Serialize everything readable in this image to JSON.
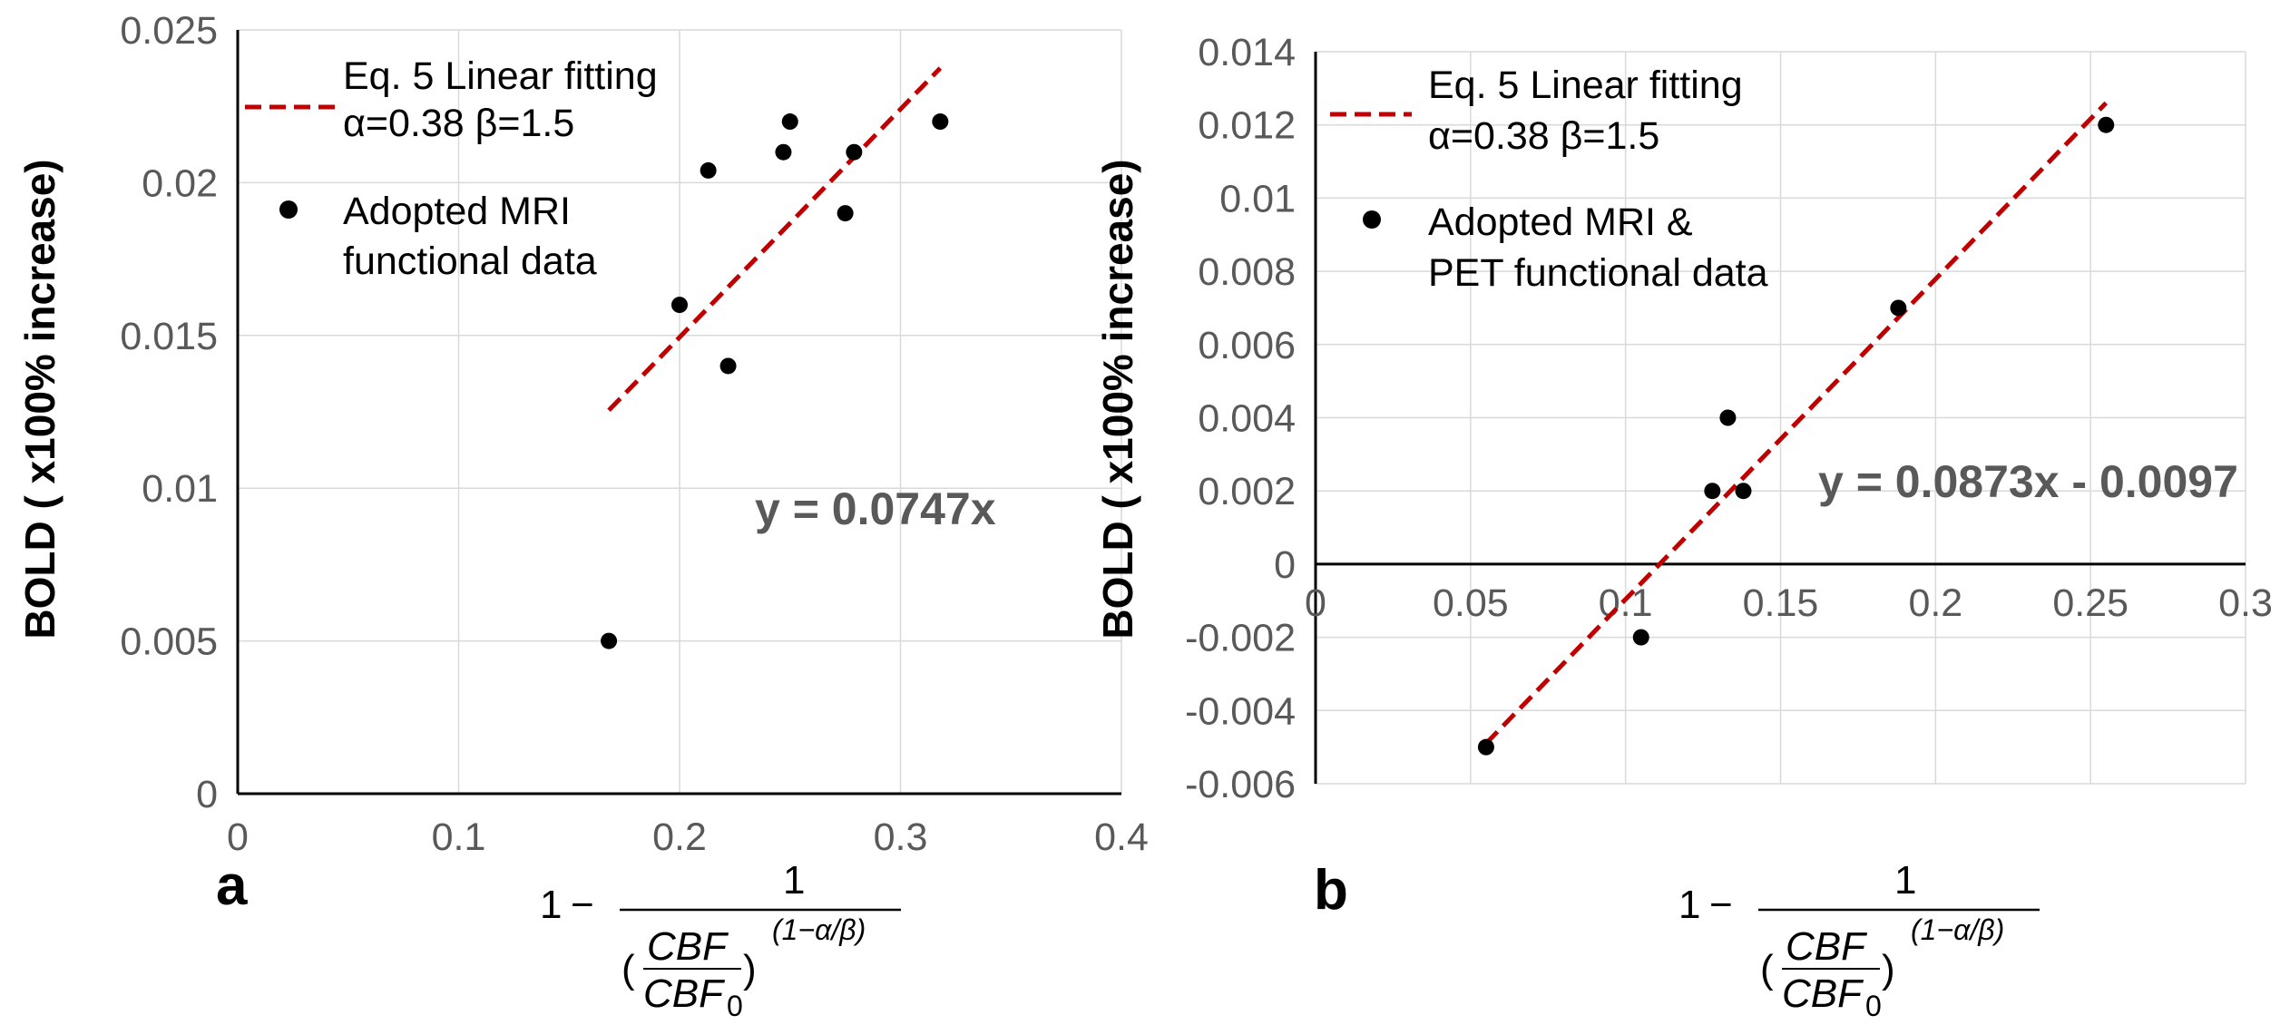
{
  "chart_data": [
    {
      "type": "scatter",
      "panel_label": "a",
      "title": "",
      "ylabel": "BOLD ( x100% increase)",
      "xlabel_formula": "1 − 1 / (CBF/CBF0)^(1−α/β)",
      "xlim": [
        0,
        0.4
      ],
      "ylim": [
        0,
        0.025
      ],
      "x_ticks": [
        0,
        0.1,
        0.2,
        0.3,
        0.4
      ],
      "x_tick_labels": [
        "0",
        "0.1",
        "0.2",
        "0.3",
        "0.4"
      ],
      "y_ticks": [
        0,
        0.005,
        0.01,
        0.015,
        0.02,
        0.025
      ],
      "y_tick_labels": [
        "0",
        "0.005",
        "0.01",
        "0.015",
        "0.02",
        "0.025"
      ],
      "grid": true,
      "legend_position": "top-left",
      "series": [
        {
          "name": "Adopted MRI functional data",
          "kind": "points",
          "color": "#000000",
          "points": [
            [
              0.168,
              0.005
            ],
            [
              0.2,
              0.016
            ],
            [
              0.213,
              0.0204
            ],
            [
              0.222,
              0.014
            ],
            [
              0.247,
              0.021
            ],
            [
              0.25,
              0.022
            ],
            [
              0.275,
              0.019
            ],
            [
              0.279,
              0.021
            ],
            [
              0.318,
              0.022
            ]
          ]
        },
        {
          "name": "Eq. 5 Linear fitting\nα=0.38 β=1.5",
          "kind": "line",
          "style": "dashed",
          "color": "#c00000",
          "x": [
            0.168,
            0.318
          ],
          "y": [
            0.01255,
            0.02375
          ]
        }
      ],
      "annotation": "y = 0.0747x"
    },
    {
      "type": "scatter",
      "panel_label": "b",
      "title": "",
      "ylabel": "BOLD ( x100% increase)",
      "xlabel_formula": "1 − 1 / (CBF/CBF0)^(1−α/β)",
      "xlim": [
        0,
        0.3
      ],
      "ylim": [
        -0.006,
        0.014
      ],
      "x_ticks": [
        0,
        0.05,
        0.1,
        0.15,
        0.2,
        0.25,
        0.3
      ],
      "x_tick_labels": [
        "0",
        "0.05",
        "0.1",
        "0.15",
        "0.2",
        "0.25",
        "0.3"
      ],
      "y_ticks": [
        -0.006,
        -0.004,
        -0.002,
        0,
        0.002,
        0.004,
        0.006,
        0.008,
        0.01,
        0.012,
        0.014
      ],
      "y_tick_labels": [
        "-0.006",
        "-0.004",
        "-0.002",
        "0",
        "0.002",
        "0.004",
        "0.006",
        "0.008",
        "0.01",
        "0.012",
        "0.014"
      ],
      "grid": true,
      "legend_position": "top-left",
      "series": [
        {
          "name": "Adopted MRI & PET functional data",
          "kind": "points",
          "color": "#000000",
          "points": [
            [
              0.055,
              -0.005
            ],
            [
              0.105,
              -0.002
            ],
            [
              0.128,
              0.002
            ],
            [
              0.133,
              0.004
            ],
            [
              0.138,
              0.002
            ],
            [
              0.188,
              0.007
            ],
            [
              0.255,
              0.012
            ]
          ]
        },
        {
          "name": "Eq. 5 Linear fitting\nα=0.38 β=1.5",
          "kind": "line",
          "style": "dashed",
          "color": "#c00000",
          "x": [
            0.055,
            0.255
          ],
          "y": [
            -0.0049,
            0.0126
          ]
        }
      ],
      "annotation": "y = 0.0873x - 0.0097"
    }
  ],
  "panels": [
    {
      "letter": "a",
      "legend": [
        {
          "line1": "Eq. 5 Linear fitting",
          "line2": "α=0.38 β=1.5"
        },
        {
          "line1": "Adopted MRI",
          "line2": "functional data"
        }
      ]
    },
    {
      "letter": "b",
      "legend": [
        {
          "line1": "Eq. 5 Linear fitting",
          "line2": "α=0.38 β=1.5"
        },
        {
          "line1": "Adopted MRI &",
          "line2": "PET functional data"
        }
      ]
    }
  ],
  "formula": {
    "one": "1",
    "minus": "−",
    "numerator": "1",
    "cbf": "CBF",
    "cbf0": "CBF",
    "sub0": "0",
    "exponent": "(1−α/β)",
    "lparen": "(",
    "rparen": ")"
  }
}
